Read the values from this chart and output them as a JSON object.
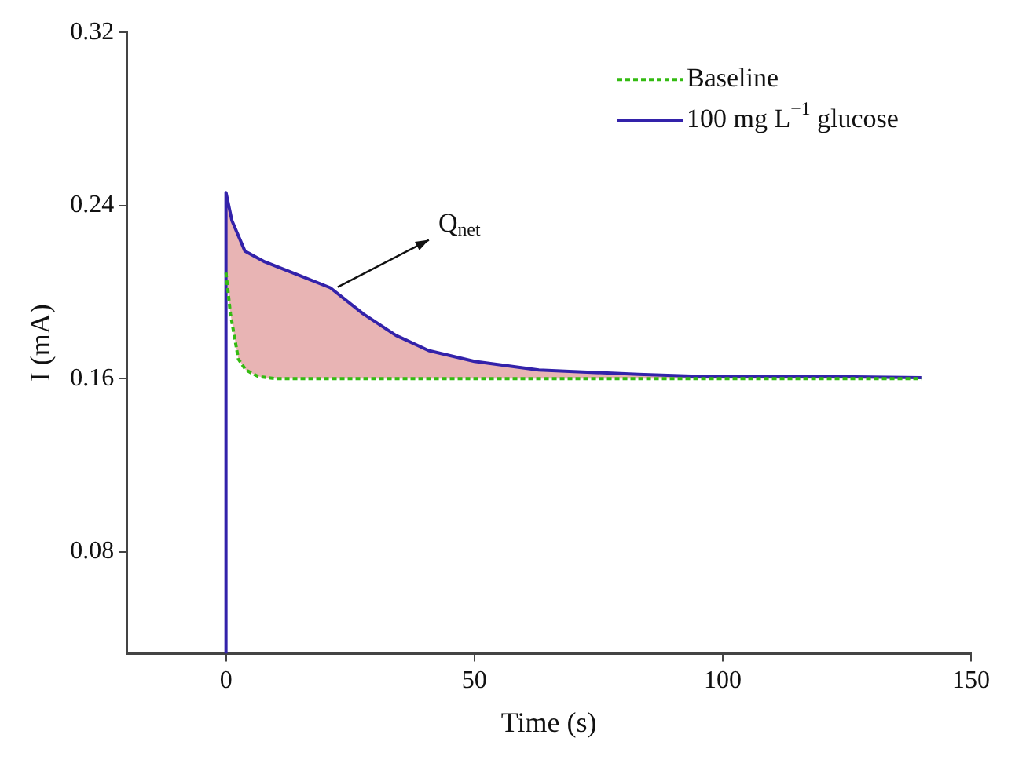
{
  "chart_data": {
    "type": "line",
    "xlabel": "Time (s)",
    "ylabel": "I (mA)",
    "xlim": [
      -20,
      150
    ],
    "xticks": [
      0,
      50,
      100,
      150
    ],
    "ylim": [
      0.033,
      0.32
    ],
    "yticks": [
      0.08,
      0.16,
      0.24,
      0.32
    ],
    "grid": false,
    "legend": "top right",
    "marker": "none",
    "series": [
      {
        "name": "Baseline",
        "color": "#33bb11",
        "line_style": "dashed",
        "x": [
          0,
          0.9,
          2.5,
          4,
          6.5,
          10,
          20,
          40,
          60,
          80,
          100,
          120,
          140
        ],
        "values": [
          0.209,
          0.19,
          0.169,
          0.164,
          0.161,
          0.16,
          0.16,
          0.16,
          0.16,
          0.16,
          0.16,
          0.16,
          0.16
        ]
      },
      {
        "name": "100 mg L$^{−1}$ glucose",
        "color": "#3322aa",
        "line_style": "solid",
        "x": [
          0,
          0,
          1.2,
          3.8,
          7.8,
          14.4,
          21,
          27.6,
          34.2,
          40.8,
          50,
          63,
          83,
          96,
          120,
          140
        ],
        "values": [
          0.033,
          0.246,
          0.233,
          0.219,
          0.214,
          0.208,
          0.202,
          0.19,
          0.18,
          0.173,
          0.168,
          0.164,
          0.162,
          0.161,
          0.161,
          0.1605
        ]
      }
    ],
    "annotations": [
      "Q$_{net}$"
    ]
  }
}
